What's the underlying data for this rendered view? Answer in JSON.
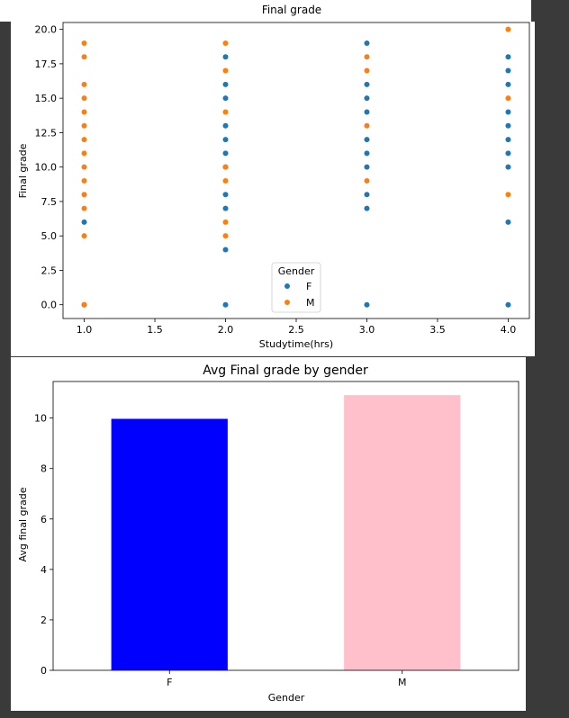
{
  "chart_data": [
    {
      "type": "scatter",
      "title": "Final grade",
      "xlabel": "Studytime(hrs)",
      "ylabel": "Final grade",
      "xlim": [
        0.85,
        4.15
      ],
      "ylim": [
        -1,
        20.5
      ],
      "xticks": [
        "1.0",
        "1.5",
        "2.0",
        "2.5",
        "3.0",
        "3.5",
        "4.0"
      ],
      "yticks": [
        "0.0",
        "2.5",
        "5.0",
        "7.5",
        "10.0",
        "12.5",
        "15.0",
        "17.5",
        "20.0"
      ],
      "grid": false,
      "legend": {
        "title": "Gender",
        "placement": "lower-center",
        "entries": [
          "F",
          "M"
        ]
      },
      "colors": {
        "F": "#1f77b4",
        "M": "#ff7f0e"
      },
      "series": [
        {
          "name": "F",
          "points": [
            [
              1,
              0
            ],
            [
              1,
              6
            ],
            [
              2,
              0
            ],
            [
              2,
              4
            ],
            [
              2,
              7
            ],
            [
              2,
              8
            ],
            [
              2,
              10
            ],
            [
              2,
              11
            ],
            [
              2,
              12
            ],
            [
              2,
              13
            ],
            [
              2,
              15
            ],
            [
              2,
              16
            ],
            [
              2,
              18
            ],
            [
              3,
              0
            ],
            [
              3,
              7
            ],
            [
              3,
              8
            ],
            [
              3,
              10
            ],
            [
              3,
              11
            ],
            [
              3,
              12
            ],
            [
              3,
              14
            ],
            [
              3,
              15
            ],
            [
              3,
              16
            ],
            [
              3,
              19
            ],
            [
              4,
              0
            ],
            [
              4,
              6
            ],
            [
              4,
              10
            ],
            [
              4,
              11
            ],
            [
              4,
              12
            ],
            [
              4,
              13
            ],
            [
              4,
              14
            ],
            [
              4,
              16
            ],
            [
              4,
              17
            ],
            [
              4,
              18
            ]
          ]
        },
        {
          "name": "M",
          "points": [
            [
              1,
              0
            ],
            [
              1,
              5
            ],
            [
              1,
              7
            ],
            [
              1,
              8
            ],
            [
              1,
              9
            ],
            [
              1,
              10
            ],
            [
              1,
              11
            ],
            [
              1,
              12
            ],
            [
              1,
              13
            ],
            [
              1,
              14
            ],
            [
              1,
              15
            ],
            [
              1,
              16
            ],
            [
              1,
              18
            ],
            [
              1,
              19
            ],
            [
              2,
              5
            ],
            [
              2,
              6
            ],
            [
              2,
              9
            ],
            [
              2,
              10
            ],
            [
              2,
              14
            ],
            [
              2,
              17
            ],
            [
              2,
              19
            ],
            [
              3,
              9
            ],
            [
              3,
              13
            ],
            [
              3,
              17
            ],
            [
              3,
              18
            ],
            [
              4,
              8
            ],
            [
              4,
              15
            ],
            [
              4,
              20
            ]
          ]
        }
      ]
    },
    {
      "type": "bar",
      "title": "Avg Final grade by gender",
      "xlabel": "Gender",
      "ylabel": "Avg final grade",
      "categories": [
        "F",
        "M"
      ],
      "values": [
        9.97,
        10.91
      ],
      "ylim": [
        0,
        11.45
      ],
      "yticks": [
        "0",
        "2",
        "4",
        "6",
        "8",
        "10"
      ],
      "grid": false,
      "colors": [
        "#0000ff",
        "#ffc0cb"
      ]
    }
  ]
}
